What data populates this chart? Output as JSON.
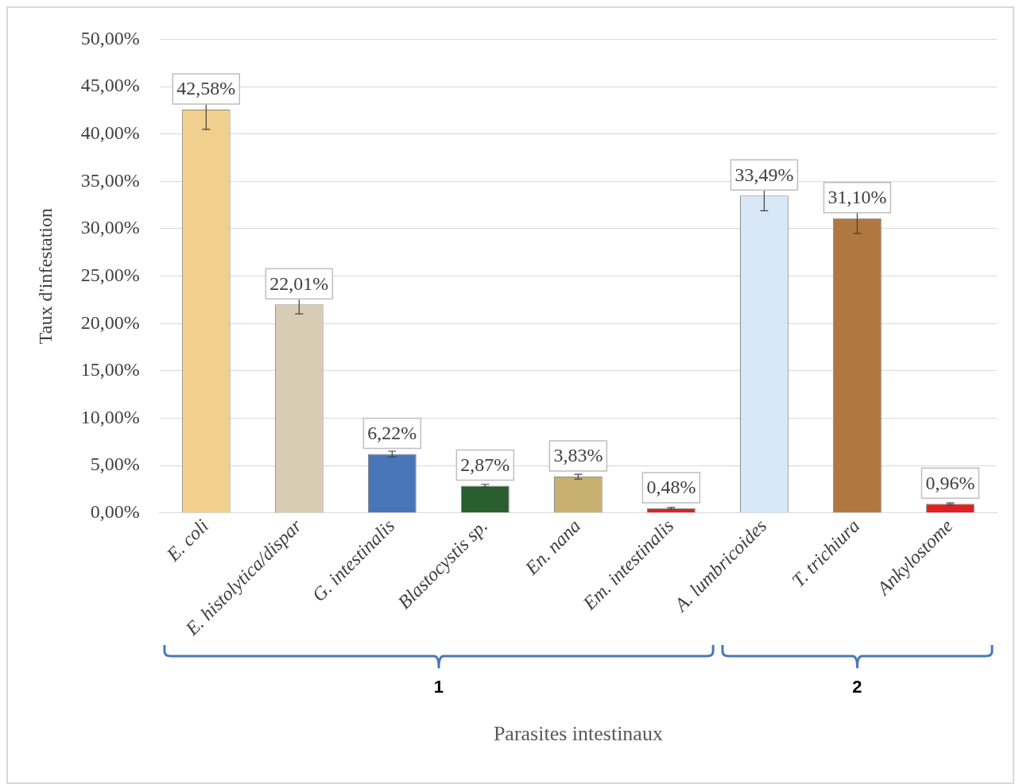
{
  "chart_data": {
    "type": "bar",
    "ylabel": "Taux d'infestation",
    "xlabel": "Parasites intestinaux",
    "categories": [
      "E. coli",
      "E. histolytica/dispar",
      "G. intestinalis",
      "Blastocystis sp.",
      "En. nana",
      "Em. intestinalis",
      "A. lumbricoides",
      "T. trichiura",
      "Ankylostome"
    ],
    "values": [
      42.58,
      22.01,
      6.22,
      2.87,
      3.83,
      0.48,
      33.49,
      31.1,
      0.96
    ],
    "colors": [
      "#f0d08c",
      "#d8ccb4",
      "#4a74b8",
      "#2a5e30",
      "#c8b070",
      "#e02020",
      "#d8e8f8",
      "#b07840",
      "#e02020"
    ],
    "errors": [
      2.1,
      1.0,
      0.3,
      0.15,
      0.25,
      0.1,
      1.6,
      1.6,
      0.1
    ],
    "value_labels": [
      "42,58%",
      "22,01%",
      "6,22%",
      "2,87%",
      "3,83%",
      "0,48%",
      "33,49%",
      "31,10%",
      "0,96%"
    ],
    "ylim": [
      0,
      50
    ],
    "yticks": [
      {
        "value": 0,
        "label": "0,00%"
      },
      {
        "value": 5,
        "label": "5,00%"
      },
      {
        "value": 10,
        "label": "10,00%"
      },
      {
        "value": 15,
        "label": "15,00%"
      },
      {
        "value": 20,
        "label": "20,00%"
      },
      {
        "value": 25,
        "label": "25,00%"
      },
      {
        "value": 30,
        "label": "30,00%"
      },
      {
        "value": 35,
        "label": "35,00%"
      },
      {
        "value": 40,
        "label": "40,00%"
      },
      {
        "value": 45,
        "label": "45,00%"
      },
      {
        "value": 50,
        "label": "50,00%"
      }
    ],
    "grid": "y",
    "legend": false,
    "annotations": [
      "1",
      "2"
    ]
  }
}
